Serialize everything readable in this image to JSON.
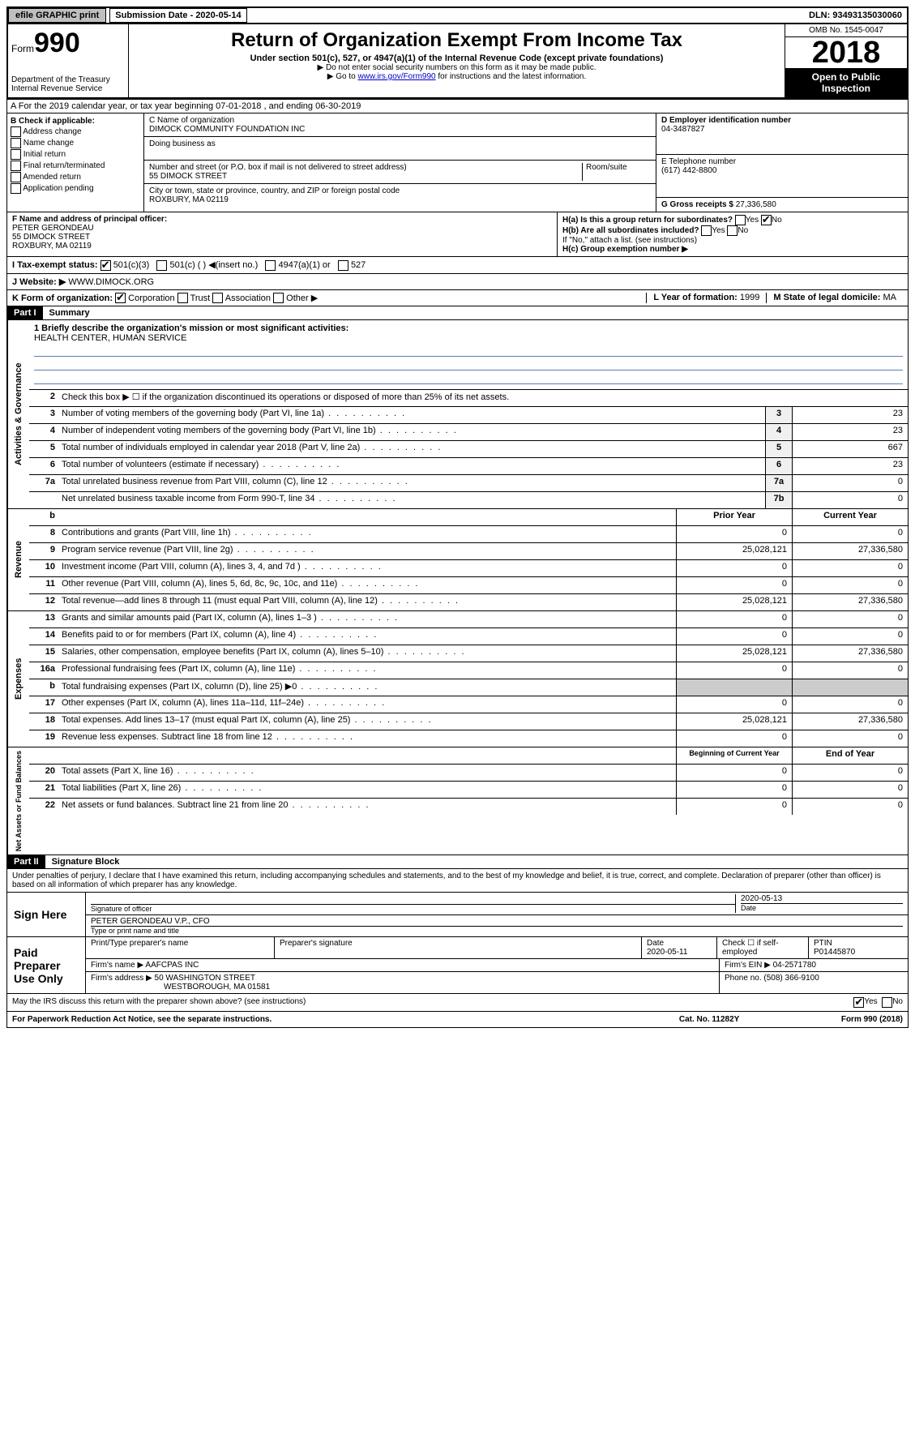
{
  "topbar": {
    "efile": "efile GRAPHIC print",
    "submission": "Submission Date - 2020-05-14",
    "dln": "DLN: 93493135030060"
  },
  "header": {
    "form_prefix": "Form",
    "form_number": "990",
    "dept1": "Department of the Treasury",
    "dept2": "Internal Revenue Service",
    "title": "Return of Organization Exempt From Income Tax",
    "subtitle": "Under section 501(c), 527, or 4947(a)(1) of the Internal Revenue Code (except private foundations)",
    "note1": "▶ Do not enter social security numbers on this form as it may be made public.",
    "note2_pre": "▶ Go to ",
    "note2_link": "www.irs.gov/Form990",
    "note2_post": " for instructions and the latest information.",
    "omb": "OMB No. 1545-0047",
    "year": "2018",
    "inspection": "Open to Public Inspection"
  },
  "section_a": "A   For the 2019 calendar year, or tax year beginning 07-01-2018    , and ending 06-30-2019",
  "col_b": {
    "title": "B Check if applicable:",
    "opts": [
      "Address change",
      "Name change",
      "Initial return",
      "Final return/terminated",
      "Amended return",
      "Application pending"
    ]
  },
  "col_c": {
    "name_label": "C Name of organization",
    "name": "DIMOCK COMMUNITY FOUNDATION INC",
    "dba_label": "Doing business as",
    "addr_label": "Number and street (or P.O. box if mail is not delivered to street address)",
    "room_label": "Room/suite",
    "addr": "55 DIMOCK STREET",
    "city_label": "City or town, state or province, country, and ZIP or foreign postal code",
    "city": "ROXBURY, MA  02119"
  },
  "col_d": {
    "ein_label": "D Employer identification number",
    "ein": "04-3487827",
    "phone_label": "E Telephone number",
    "phone": "(617) 442-8800",
    "gross_label": "G Gross receipts $",
    "gross": "27,336,580"
  },
  "row_f": {
    "label": "F  Name and address of principal officer:",
    "name": "PETER GERONDEAU",
    "addr1": "55 DIMOCK STREET",
    "addr2": "ROXBURY, MA  02119"
  },
  "row_h": {
    "ha": "H(a)  Is this a group return for subordinates?",
    "hb": "H(b)  Are all subordinates included?",
    "hb_note": "If \"No,\" attach a list. (see instructions)",
    "hc": "H(c)  Group exemption number ▶"
  },
  "row_i": {
    "label": "I    Tax-exempt status:",
    "opt1": "501(c)(3)",
    "opt2": "501(c) (   ) ◀(insert no.)",
    "opt3": "4947(a)(1) or",
    "opt4": "527"
  },
  "row_j": {
    "label": "J    Website: ▶",
    "url": "WWW.DIMOCK.ORG"
  },
  "row_k": {
    "label": "K Form of organization:",
    "opts": [
      "Corporation",
      "Trust",
      "Association",
      "Other ▶"
    ],
    "l_label": "L Year of formation:",
    "l_val": "1999",
    "m_label": "M State of legal domicile:",
    "m_val": "MA"
  },
  "part1": {
    "header": "Part I",
    "title": "Summary",
    "mission_label": "1  Briefly describe the organization's mission or most significant activities:",
    "mission": "HEALTH CENTER, HUMAN SERVICE",
    "line2": "Check this box ▶ ☐  if the organization discontinued its operations or disposed of more than 25% of its net assets.",
    "lines_gov": [
      {
        "n": "3",
        "t": "Number of voting members of the governing body (Part VI, line 1a)",
        "box": "3",
        "v": "23"
      },
      {
        "n": "4",
        "t": "Number of independent voting members of the governing body (Part VI, line 1b)",
        "box": "4",
        "v": "23"
      },
      {
        "n": "5",
        "t": "Total number of individuals employed in calendar year 2018 (Part V, line 2a)",
        "box": "5",
        "v": "667"
      },
      {
        "n": "6",
        "t": "Total number of volunteers (estimate if necessary)",
        "box": "6",
        "v": "23"
      },
      {
        "n": "7a",
        "t": "Total unrelated business revenue from Part VIII, column (C), line 12",
        "box": "7a",
        "v": "0"
      },
      {
        "n": "",
        "t": "Net unrelated business taxable income from Form 990-T, line 34",
        "box": "7b",
        "v": "0"
      }
    ],
    "col_headers": {
      "b": "b",
      "prior": "Prior Year",
      "current": "Current Year"
    },
    "lines_rev": [
      {
        "n": "8",
        "t": "Contributions and grants (Part VIII, line 1h)",
        "p": "0",
        "c": "0"
      },
      {
        "n": "9",
        "t": "Program service revenue (Part VIII, line 2g)",
        "p": "25,028,121",
        "c": "27,336,580"
      },
      {
        "n": "10",
        "t": "Investment income (Part VIII, column (A), lines 3, 4, and 7d )",
        "p": "0",
        "c": "0"
      },
      {
        "n": "11",
        "t": "Other revenue (Part VIII, column (A), lines 5, 6d, 8c, 9c, 10c, and 11e)",
        "p": "0",
        "c": "0"
      },
      {
        "n": "12",
        "t": "Total revenue—add lines 8 through 11 (must equal Part VIII, column (A), line 12)",
        "p": "25,028,121",
        "c": "27,336,580"
      }
    ],
    "lines_exp": [
      {
        "n": "13",
        "t": "Grants and similar amounts paid (Part IX, column (A), lines 1–3 )",
        "p": "0",
        "c": "0"
      },
      {
        "n": "14",
        "t": "Benefits paid to or for members (Part IX, column (A), line 4)",
        "p": "0",
        "c": "0"
      },
      {
        "n": "15",
        "t": "Salaries, other compensation, employee benefits (Part IX, column (A), lines 5–10)",
        "p": "25,028,121",
        "c": "27,336,580"
      },
      {
        "n": "16a",
        "t": "Professional fundraising fees (Part IX, column (A), line 11e)",
        "p": "0",
        "c": "0"
      },
      {
        "n": "b",
        "t": "Total fundraising expenses (Part IX, column (D), line 25) ▶0",
        "p": "",
        "c": ""
      },
      {
        "n": "17",
        "t": "Other expenses (Part IX, column (A), lines 11a–11d, 11f–24e)",
        "p": "0",
        "c": "0"
      },
      {
        "n": "18",
        "t": "Total expenses. Add lines 13–17 (must equal Part IX, column (A), line 25)",
        "p": "25,028,121",
        "c": "27,336,580"
      },
      {
        "n": "19",
        "t": "Revenue less expenses. Subtract line 18 from line 12",
        "p": "0",
        "c": "0"
      }
    ],
    "col_headers2": {
      "prior": "Beginning of Current Year",
      "current": "End of Year"
    },
    "lines_net": [
      {
        "n": "20",
        "t": "Total assets (Part X, line 16)",
        "p": "0",
        "c": "0"
      },
      {
        "n": "21",
        "t": "Total liabilities (Part X, line 26)",
        "p": "0",
        "c": "0"
      },
      {
        "n": "22",
        "t": "Net assets or fund balances. Subtract line 21 from line 20",
        "p": "0",
        "c": "0"
      }
    ]
  },
  "part2": {
    "header": "Part II",
    "title": "Signature Block",
    "perjury": "Under penalties of perjury, I declare that I have examined this return, including accompanying schedules and statements, and to the best of my knowledge and belief, it is true, correct, and complete. Declaration of preparer (other than officer) is based on all information of which preparer has any knowledge."
  },
  "sign": {
    "label": "Sign Here",
    "sig_label": "Signature of officer",
    "date": "2020-05-13",
    "date_label": "Date",
    "name": "PETER GERONDEAU  V.P., CFO",
    "name_label": "Type or print name and title"
  },
  "paid": {
    "label": "Paid Preparer Use Only",
    "h1": "Print/Type preparer's name",
    "h2": "Preparer's signature",
    "h3": "Date",
    "h3v": "2020-05-11",
    "h4": "Check ☐ if self-employed",
    "h5": "PTIN",
    "h5v": "P01445870",
    "firm_label": "Firm's name     ▶",
    "firm": "AAFCPAS INC",
    "ein_label": "Firm's EIN ▶",
    "ein": "04-2571780",
    "addr_label": "Firm's address ▶",
    "addr": "50 WASHINGTON STREET",
    "city": "WESTBOROUGH, MA  01581",
    "phone_label": "Phone no.",
    "phone": "(508) 366-9100"
  },
  "footer": {
    "discuss": "May the IRS discuss this return with the preparer shown above? (see instructions)",
    "notice": "For Paperwork Reduction Act Notice, see the separate instructions.",
    "cat": "Cat. No. 11282Y",
    "form": "Form 990 (2018)"
  },
  "side_labels": {
    "gov": "Activities & Governance",
    "rev": "Revenue",
    "exp": "Expenses",
    "net": "Net Assets or Fund Balances"
  }
}
